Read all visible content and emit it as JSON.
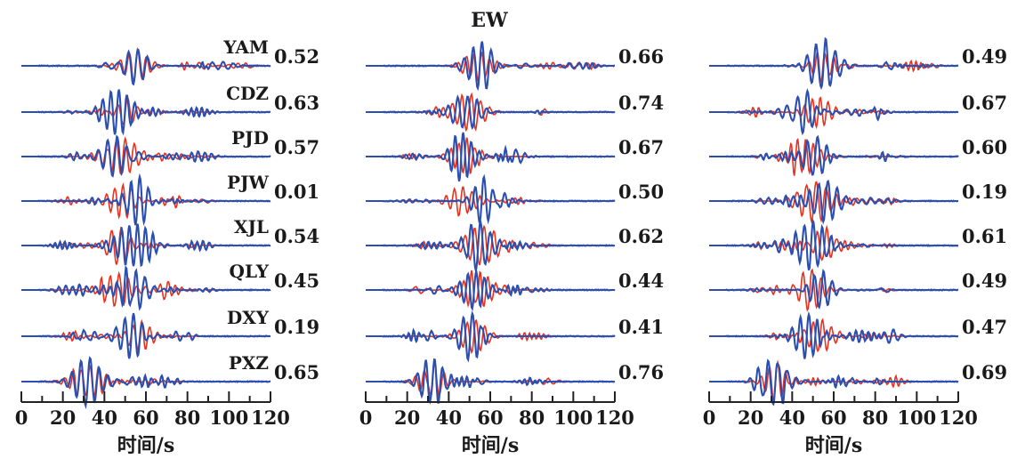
{
  "figure_title": "EW",
  "colors": {
    "observed": "#e8321e",
    "synthetic": "#2a4fb0",
    "axis": "#222222"
  },
  "chart_data": [
    {
      "type": "line",
      "stations": [
        "YAM",
        "CDZ",
        "PJD",
        "PJW",
        "XJL",
        "QLY",
        "DXY",
        "PXZ"
      ],
      "values": [
        "0.52",
        "0.63",
        "0.57",
        "0.01",
        "0.54",
        "0.45",
        "0.19",
        "0.65"
      ],
      "xlabel": "时间/s",
      "xticks": [
        "0",
        "20",
        "40",
        "60",
        "80",
        "100",
        "120"
      ],
      "xlim": [
        0,
        120
      ],
      "series": [
        {
          "color": "#e8321e"
        },
        {
          "color": "#2a4fb0"
        }
      ]
    },
    {
      "type": "line",
      "stations": [],
      "values": [
        "0.66",
        "0.74",
        "0.67",
        "0.50",
        "0.62",
        "0.44",
        "0.41",
        "0.76"
      ],
      "xlabel": "时间/s",
      "xticks": [
        "0",
        "20",
        "40",
        "60",
        "80",
        "100",
        "120"
      ],
      "xlim": [
        0,
        120
      ],
      "series": [
        {
          "color": "#e8321e"
        },
        {
          "color": "#2a4fb0"
        }
      ]
    },
    {
      "type": "line",
      "stations": [],
      "values": [
        "0.49",
        "0.67",
        "0.60",
        "0.19",
        "0.61",
        "0.49",
        "0.47",
        "0.69"
      ],
      "xlabel": "时间/s",
      "xticks": [
        "0",
        "20",
        "40",
        "60",
        "80",
        "100",
        "120"
      ],
      "xlim": [
        0,
        120
      ],
      "series": [
        {
          "color": "#e8321e"
        },
        {
          "color": "#2a4fb0"
        }
      ]
    }
  ]
}
